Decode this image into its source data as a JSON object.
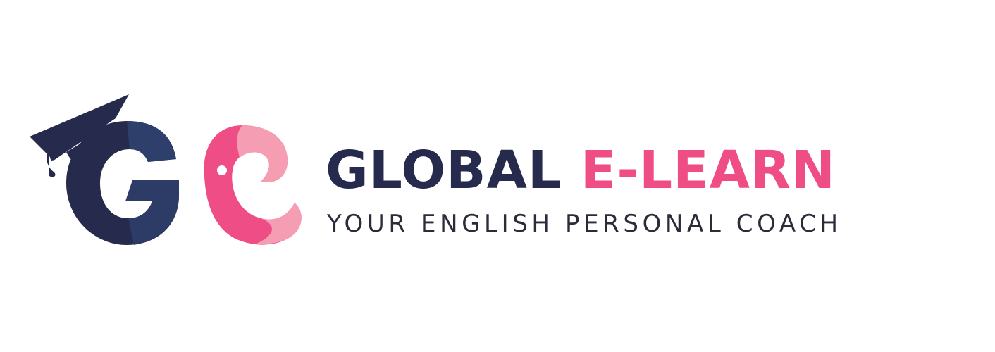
{
  "brand": {
    "name_part1": "GLOBAL",
    "name_part2": "E-LEARN",
    "tagline": "YOUR ENGLISH PERSONAL COACH"
  },
  "colors": {
    "navy": "#262a4d",
    "navy_light": "#2f3f6b",
    "pink": "#ef4d85",
    "pink_light": "#f59db3",
    "text_dark": "#2b2b3a",
    "background": "#ffffff"
  },
  "logo": {
    "icons": [
      "graduation-cap-icon",
      "letter-g-icon",
      "letter-e-person-icon"
    ]
  }
}
